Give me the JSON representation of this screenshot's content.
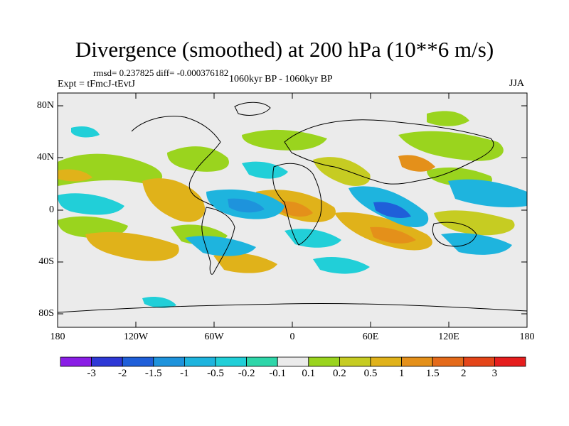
{
  "title": "Divergence (smoothed) at 200 hPa (10**6 m/s)",
  "stats_line": "rmsd= 0.237825 diff= -0.000376182",
  "experiment": "Expt = tFmcJ-tEvtJ",
  "period": "1060kyr BP - 1060kyr BP",
  "season": "JJA",
  "map": {
    "projection": "cylindrical equidistant",
    "lon_range": [
      -180,
      180
    ],
    "lat_range": [
      -90,
      90
    ],
    "lat_tick_labels": [
      "80N",
      "40N",
      "0",
      "40S",
      "80S"
    ],
    "lon_tick_labels": [
      "180",
      "120W",
      "60W",
      "0",
      "60E",
      "120E",
      "180"
    ],
    "background_color": "#ebebeb"
  },
  "colorbar": {
    "labels": [
      "-3",
      "-2",
      "-1.5",
      "-1",
      "-0.5",
      "-0.2",
      "-0.1",
      "0.1",
      "0.2",
      "0.5",
      "1",
      "1.5",
      "2",
      "3"
    ],
    "colors": [
      "#8a1ee6",
      "#2e38d6",
      "#1f5fd9",
      "#1e93dc",
      "#1eb4de",
      "#21cfd8",
      "#2ed6a9",
      "#ebebeb",
      "#9ad41e",
      "#c6cc22",
      "#e0b21a",
      "#e4901a",
      "#e46a1a",
      "#e44519",
      "#e61e1e"
    ]
  }
}
